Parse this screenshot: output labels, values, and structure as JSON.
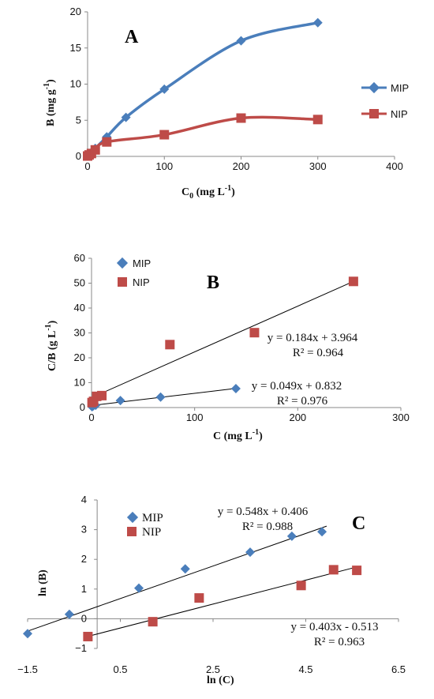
{
  "colors": {
    "mip": "#4a7ebb",
    "nip": "#be4b48",
    "axis": "#888888",
    "fit": "#000000"
  },
  "chart_data": [
    {
      "type": "line",
      "title": "A",
      "xlabel": "C",
      "xlabel_sub": "0",
      "xlabel_unit": " (mg L",
      "xlabel_sup": "-1",
      "xlabel_end": ")",
      "ylabel": "B (mg g",
      "ylabel_sup": "-1",
      "ylabel_end": ")",
      "xlim": [
        0,
        400
      ],
      "ylim": [
        0,
        20
      ],
      "xticks": [
        0,
        100,
        200,
        300,
        400
      ],
      "yticks": [
        0,
        5,
        10,
        15,
        20
      ],
      "xtick_labels": [
        "0",
        "100",
        "200",
        "300",
        "400"
      ],
      "ytick_labels": [
        "0",
        "5",
        "10",
        "15",
        "20"
      ],
      "legend_position": "right",
      "series": [
        {
          "name": "MIP",
          "x": [
            0,
            2,
            5,
            10,
            25,
            50,
            100,
            200,
            300
          ],
          "y": [
            0.05,
            0.2,
            0.55,
            1.1,
            2.7,
            5.4,
            9.3,
            16.0,
            18.5
          ]
        },
        {
          "name": "NIP",
          "x": [
            0,
            2,
            5,
            10,
            25,
            100,
            200,
            300
          ],
          "y": [
            0.05,
            0.2,
            0.4,
            0.9,
            2.0,
            3.0,
            5.3,
            5.1
          ]
        }
      ]
    },
    {
      "type": "scatter",
      "title": "B",
      "xlabel": "C (mg L",
      "xlabel_sup": "-1",
      "xlabel_end": ")",
      "ylabel": "C/B (g L",
      "ylabel_sup": "-1",
      "ylabel_end": ")",
      "xlim": [
        0,
        300
      ],
      "ylim": [
        0,
        60
      ],
      "xticks": [
        0,
        100,
        200,
        300
      ],
      "yticks": [
        0,
        10,
        20,
        30,
        40,
        50,
        60
      ],
      "xtick_labels": [
        "0",
        "100",
        "200",
        "300"
      ],
      "ytick_labels": [
        "0",
        "10",
        "20",
        "30",
        "40",
        "50",
        "60"
      ],
      "legend_position": "top-left",
      "series": [
        {
          "name": "MIP",
          "x": [
            0.5,
            1.5,
            4,
            28,
            67,
            140
          ],
          "y": [
            0.3,
            0.6,
            0.9,
            2.8,
            4.2,
            7.6
          ],
          "fit": {
            "slope": 0.049,
            "intercept": 0.832,
            "x_range": [
              0,
              140
            ],
            "equation": "y = 0.049x + 0.832",
            "r2": "R² = 0.976"
          }
        },
        {
          "name": "NIP",
          "x": [
            0.5,
            2,
            5,
            10,
            76,
            158,
            254
          ],
          "y": [
            2.0,
            2.5,
            4.5,
            4.8,
            25.3,
            30.1,
            50.7
          ],
          "fit": {
            "slope": 0.184,
            "intercept": 3.964,
            "x_range": [
              0,
              254
            ],
            "equation": "y = 0.184x + 3.964",
            "r2": "R² = 0.964"
          }
        }
      ]
    },
    {
      "type": "scatter",
      "title": "C",
      "xlabel": "ln (C)",
      "ylabel": "ln (B)",
      "xlim": [
        -1.5,
        6.5
      ],
      "ylim": [
        -1,
        4
      ],
      "xticks": [
        -1.5,
        0.5,
        2.5,
        4.5,
        6.5
      ],
      "yticks": [
        -1,
        0,
        1,
        2,
        3,
        4
      ],
      "xtick_labels": [
        "−1.5",
        "0.5",
        "2.5",
        "4.5",
        "6.5"
      ],
      "ytick_labels": [
        "−1",
        "0",
        "1",
        "2",
        "3",
        "4"
      ],
      "legend_position": "top-left",
      "series": [
        {
          "name": "MIP",
          "x": [
            -1.5,
            -0.6,
            0.9,
            1.9,
            3.3,
            4.2,
            4.85
          ],
          "y": [
            -0.5,
            0.15,
            1.03,
            1.68,
            2.24,
            2.78,
            2.93
          ],
          "fit": {
            "slope": 0.548,
            "intercept": 0.406,
            "x_range": [
              -1.5,
              4.95
            ],
            "equation": "y = 0.548x + 0.406",
            "r2": "R² = 0.988"
          }
        },
        {
          "name": "NIP",
          "x": [
            -0.2,
            1.2,
            2.2,
            4.4,
            5.1,
            5.6
          ],
          "y": [
            -0.6,
            -0.1,
            0.7,
            1.12,
            1.65,
            1.63
          ],
          "fit": {
            "slope": 0.403,
            "intercept": -0.513,
            "x_range": [
              -0.2,
              5.65
            ],
            "equation": "y = 0.403x - 0.513",
            "r2": "R² = 0.963"
          }
        }
      ]
    }
  ]
}
